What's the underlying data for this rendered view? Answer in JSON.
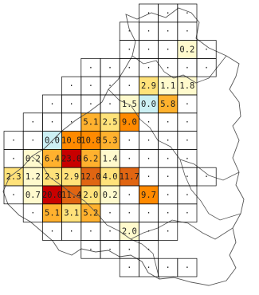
{
  "colors": {
    "background": "#ffffff",
    "grid_line": "#000000",
    "boundary_line": "#555555",
    "value_text": "#1e1e1e"
  },
  "legend_scale": [
    {
      "name": "dot-marker",
      "fill": "#ffffff"
    },
    {
      "name": "near-zero",
      "fill": "#ccf0f4"
    },
    {
      "name": "very-low",
      "fill": "#fffacd"
    },
    {
      "name": "low",
      "fill": "#ffe27a"
    },
    {
      "name": "medium",
      "fill": "#ffb12e"
    },
    {
      "name": "high",
      "fill": "#ff8a00"
    },
    {
      "name": "very-high",
      "fill": "#e06512"
    },
    {
      "name": "extreme",
      "fill": "#c80000"
    }
  ],
  "grid": {
    "rows": [
      [
        null,
        null,
        null,
        null,
        null,
        null,
        null,
        "·",
        "·",
        "·",
        null,
        null
      ],
      [
        null,
        null,
        null,
        null,
        null,
        null,
        "·",
        "·",
        "·",
        "·",
        null,
        null
      ],
      [
        null,
        null,
        null,
        null,
        null,
        null,
        "·",
        "·",
        "·",
        "0.2",
        "·",
        null
      ],
      [
        null,
        null,
        null,
        null,
        "·",
        "·",
        "·",
        "·",
        "·",
        "·",
        "·",
        null
      ],
      [
        null,
        null,
        null,
        "·",
        "·",
        "·",
        "·",
        "2.9",
        "1.1",
        "1.8",
        null,
        null
      ],
      [
        null,
        null,
        "·",
        "·",
        "·",
        "·",
        "1.5",
        "0.0",
        "5.8",
        "·",
        null,
        null
      ],
      [
        null,
        "·",
        "·",
        "·",
        "5.1",
        "2.5",
        "9.0",
        "·",
        "·",
        "·",
        null,
        null
      ],
      [
        "·",
        "·",
        "0.0",
        "10.8",
        "10.8",
        "5.3",
        "·",
        "·",
        "·",
        "·",
        null,
        null
      ],
      [
        "·",
        "0.2",
        "6.4",
        "23.0",
        "6.2",
        "1.4",
        "·",
        "·",
        "·",
        "·",
        null,
        null
      ],
      [
        "2.3",
        "1.2",
        "2.3",
        "2.9",
        "12.0",
        "4.0",
        "11.7",
        "·",
        "·",
        "·",
        "·",
        null
      ],
      [
        "·",
        "0.7",
        "20.0",
        "11.4",
        "2.0",
        "0.2",
        "·",
        "9.7",
        "·",
        "·",
        null,
        null
      ],
      [
        null,
        "·",
        "5.1",
        "3.1",
        "5.2",
        "·",
        "·",
        "·",
        "·",
        "·",
        null,
        null
      ],
      [
        null,
        null,
        "·",
        "·",
        "·",
        "·",
        "2.0",
        "·",
        "·",
        null,
        null,
        null
      ],
      [
        null,
        null,
        null,
        null,
        "·",
        "·",
        "·",
        "·",
        null,
        null,
        null,
        null
      ],
      [
        null,
        null,
        null,
        null,
        null,
        null,
        "·",
        "·",
        "·",
        "·",
        null,
        null
      ]
    ],
    "levels": [
      [
        null,
        null,
        null,
        null,
        null,
        null,
        null,
        0,
        0,
        0,
        null,
        null
      ],
      [
        null,
        null,
        null,
        null,
        null,
        null,
        0,
        0,
        0,
        0,
        null,
        null
      ],
      [
        null,
        null,
        null,
        null,
        null,
        null,
        0,
        0,
        0,
        2,
        0,
        null
      ],
      [
        null,
        null,
        null,
        null,
        0,
        0,
        0,
        0,
        0,
        0,
        0,
        null
      ],
      [
        null,
        null,
        null,
        0,
        0,
        0,
        0,
        3,
        2,
        2,
        null,
        null
      ],
      [
        null,
        null,
        0,
        0,
        0,
        0,
        2,
        1,
        4,
        0,
        null,
        null
      ],
      [
        null,
        0,
        0,
        0,
        4,
        3,
        5,
        0,
        0,
        0,
        null,
        null
      ],
      [
        0,
        0,
        1,
        5,
        5,
        4,
        0,
        0,
        0,
        0,
        null,
        null
      ],
      [
        0,
        2,
        4,
        7,
        4,
        2,
        0,
        0,
        0,
        0,
        null,
        null
      ],
      [
        3,
        2,
        3,
        3,
        6,
        3,
        6,
        0,
        0,
        0,
        0,
        null
      ],
      [
        0,
        2,
        7,
        6,
        3,
        2,
        0,
        5,
        0,
        0,
        null,
        null
      ],
      [
        null,
        0,
        4,
        3,
        4,
        0,
        0,
        0,
        0,
        0,
        null,
        null
      ],
      [
        null,
        null,
        0,
        0,
        0,
        0,
        2,
        0,
        0,
        null,
        null,
        null
      ],
      [
        null,
        null,
        null,
        null,
        0,
        0,
        0,
        0,
        null,
        null,
        null,
        null
      ],
      [
        null,
        null,
        null,
        null,
        null,
        null,
        0,
        0,
        0,
        0,
        null,
        null
      ]
    ]
  }
}
